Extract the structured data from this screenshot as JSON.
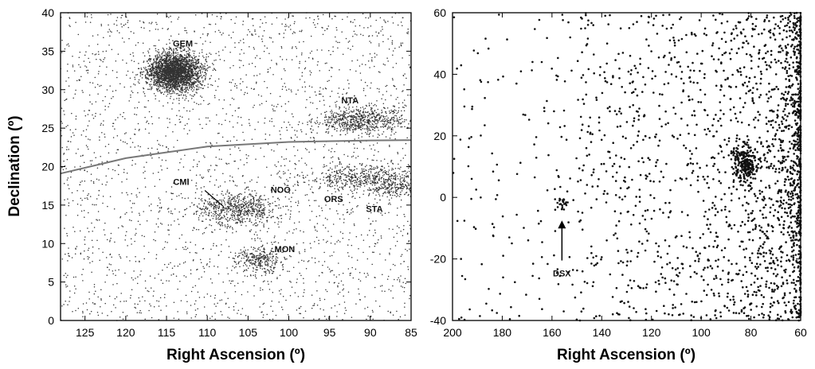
{
  "chart_data": [
    {
      "type": "scatter",
      "title": "",
      "xlabel": "Right Ascension (º)",
      "ylabel": "Declination (º)",
      "xlim": [
        128,
        85
      ],
      "ylim": [
        0,
        40
      ],
      "x_reversed": true,
      "xticks": [
        125,
        120,
        115,
        110,
        105,
        100,
        95,
        90,
        85
      ],
      "yticks": [
        0,
        5,
        10,
        15,
        20,
        25,
        30,
        35,
        40
      ],
      "grid": false,
      "point_color": "#333333",
      "clusters": [
        {
          "name": "GEM",
          "ra": 114,
          "dec": 32.3,
          "ra_sd": 1.6,
          "dec_sd": 1.25,
          "count": 2600
        },
        {
          "name": "NTA",
          "ra": 91,
          "dec": 26,
          "ra_sd": 2.6,
          "dec_sd": 0.9,
          "count": 650
        },
        {
          "name": "ORS",
          "ra": 91,
          "dec": 18.5,
          "ra_sd": 3.5,
          "dec_sd": 0.9,
          "count": 500
        },
        {
          "name": "STA",
          "ra": 87,
          "dec": 17.3,
          "ra_sd": 1.8,
          "dec_sd": 0.9,
          "count": 200
        },
        {
          "name": "NOO",
          "ra": 106,
          "dec": 14.5,
          "ra_sd": 2.2,
          "dec_sd": 1.0,
          "count": 550
        },
        {
          "name": "MON",
          "ra": 103.5,
          "dec": 7.8,
          "ra_sd": 1.5,
          "dec_sd": 0.8,
          "count": 300
        },
        {
          "name": "CMI",
          "ra": 110,
          "dec": 14.5,
          "ra_sd": 1.5,
          "dec_sd": 0.8,
          "count": 60
        }
      ],
      "background_points": 2500,
      "ecliptic": [
        [
          128,
          19.1
        ],
        [
          120,
          21.1
        ],
        [
          110,
          22.6
        ],
        [
          100,
          23.2
        ],
        [
          90,
          23.4
        ],
        [
          85,
          23.44
        ]
      ],
      "annotations": [
        {
          "text": "GEM",
          "ra": 113,
          "dec": 35.6
        },
        {
          "text": "NTA",
          "ra": 92.5,
          "dec": 28.2
        },
        {
          "text": "CMI",
          "ra": 113.2,
          "dec": 17.6
        },
        {
          "text": "NOO",
          "ra": 101,
          "dec": 16.6
        },
        {
          "text": "ORS",
          "ra": 94.5,
          "dec": 15.4
        },
        {
          "text": "STA",
          "ra": 89.5,
          "dec": 14.1
        },
        {
          "text": "MON",
          "ra": 100.5,
          "dec": 8.9
        }
      ],
      "pointer": {
        "from": [
          110.3,
          16.9
        ],
        "to": [
          108,
          14.8
        ]
      }
    },
    {
      "type": "scatter",
      "title": "",
      "xlabel": "Right Ascension (º)",
      "ylabel": "",
      "xlim": [
        200,
        60
      ],
      "ylim": [
        -40,
        60
      ],
      "x_reversed": true,
      "xticks": [
        200,
        180,
        160,
        140,
        120,
        100,
        80,
        60
      ],
      "yticks": [
        -40,
        -20,
        0,
        20,
        40,
        60
      ],
      "grid": false,
      "point_color": "#111111",
      "clusters": [
        {
          "name": "main",
          "ra": 82,
          "dec": 11,
          "ra_sd": 2.5,
          "dec_sd": 3.0,
          "count": 220
        },
        {
          "name": "DSX",
          "ra": 156,
          "dec": -2,
          "ra_sd": 1.5,
          "dec_sd": 1.1,
          "count": 25
        }
      ],
      "background_points": 2400,
      "annotations": [
        {
          "text": "DSX",
          "ra": 156,
          "dec": -25.6
        }
      ],
      "arrow": {
        "from": [
          156,
          -20.5
        ],
        "to": [
          156,
          -7.5
        ]
      }
    }
  ]
}
